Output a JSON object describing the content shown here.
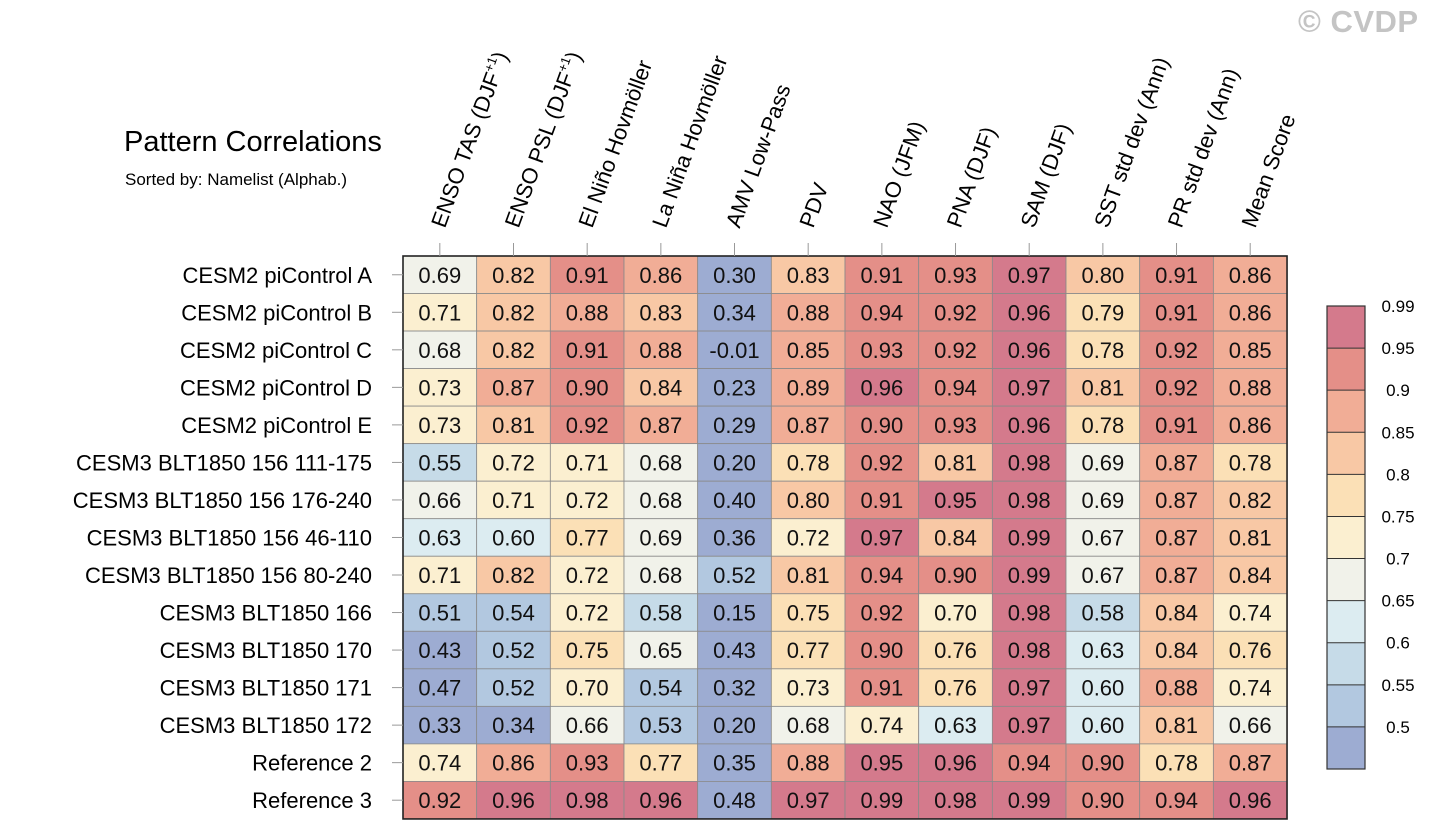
{
  "watermark": "© CVDP",
  "chart_data": {
    "type": "heatmap",
    "title": "Pattern Correlations",
    "subtitle": "Sorted by: Namelist (Alphab.)",
    "columns": [
      "ENSO TAS (DJF+1)",
      "ENSO PSL (DJF+1)",
      "El Niño Hovmöller",
      "La Niña Hovmöller",
      "AMV Low-Pass",
      "PDV",
      "NAO (JFM)",
      "PNA (DJF)",
      "SAM (DJF)",
      "SST std dev (Ann)",
      "PR std dev (Ann)",
      "Mean Score"
    ],
    "rows": [
      "CESM2 piControl A",
      "CESM2 piControl B",
      "CESM2 piControl C",
      "CESM2 piControl D",
      "CESM2 piControl E",
      "CESM3 BLT1850 156 111-175",
      "CESM3 BLT1850 156 176-240",
      "CESM3 BLT1850 156 46-110",
      "CESM3 BLT1850 156 80-240",
      "CESM3 BLT1850 166",
      "CESM3 BLT1850 170",
      "CESM3 BLT1850 171",
      "CESM3 BLT1850 172",
      "Reference 2",
      "Reference 3"
    ],
    "values": [
      [
        "0.69",
        "0.82",
        "0.91",
        "0.86",
        "0.30",
        "0.83",
        "0.91",
        "0.93",
        "0.97",
        "0.80",
        "0.91",
        "0.86"
      ],
      [
        "0.71",
        "0.82",
        "0.88",
        "0.83",
        "0.34",
        "0.88",
        "0.94",
        "0.92",
        "0.96",
        "0.79",
        "0.91",
        "0.86"
      ],
      [
        "0.68",
        "0.82",
        "0.91",
        "0.88",
        "-0.01",
        "0.85",
        "0.93",
        "0.92",
        "0.96",
        "0.78",
        "0.92",
        "0.85"
      ],
      [
        "0.73",
        "0.87",
        "0.90",
        "0.84",
        "0.23",
        "0.89",
        "0.96",
        "0.94",
        "0.97",
        "0.81",
        "0.92",
        "0.88"
      ],
      [
        "0.73",
        "0.81",
        "0.92",
        "0.87",
        "0.29",
        "0.87",
        "0.90",
        "0.93",
        "0.96",
        "0.78",
        "0.91",
        "0.86"
      ],
      [
        "0.55",
        "0.72",
        "0.71",
        "0.68",
        "0.20",
        "0.78",
        "0.92",
        "0.81",
        "0.98",
        "0.69",
        "0.87",
        "0.78"
      ],
      [
        "0.66",
        "0.71",
        "0.72",
        "0.68",
        "0.40",
        "0.80",
        "0.91",
        "0.95",
        "0.98",
        "0.69",
        "0.87",
        "0.82"
      ],
      [
        "0.63",
        "0.60",
        "0.77",
        "0.69",
        "0.36",
        "0.72",
        "0.97",
        "0.84",
        "0.99",
        "0.67",
        "0.87",
        "0.81"
      ],
      [
        "0.71",
        "0.82",
        "0.72",
        "0.68",
        "0.52",
        "0.81",
        "0.94",
        "0.90",
        "0.99",
        "0.67",
        "0.87",
        "0.84"
      ],
      [
        "0.51",
        "0.54",
        "0.72",
        "0.58",
        "0.15",
        "0.75",
        "0.92",
        "0.70",
        "0.98",
        "0.58",
        "0.84",
        "0.74"
      ],
      [
        "0.43",
        "0.52",
        "0.75",
        "0.65",
        "0.43",
        "0.77",
        "0.90",
        "0.76",
        "0.98",
        "0.63",
        "0.84",
        "0.76"
      ],
      [
        "0.47",
        "0.52",
        "0.70",
        "0.54",
        "0.32",
        "0.73",
        "0.91",
        "0.76",
        "0.97",
        "0.60",
        "0.88",
        "0.74"
      ],
      [
        "0.33",
        "0.34",
        "0.66",
        "0.53",
        "0.20",
        "0.68",
        "0.74",
        "0.63",
        "0.97",
        "0.60",
        "0.81",
        "0.66"
      ],
      [
        "0.74",
        "0.86",
        "0.93",
        "0.77",
        "0.35",
        "0.88",
        "0.95",
        "0.96",
        "0.94",
        "0.90",
        "0.78",
        "0.87"
      ],
      [
        "0.92",
        "0.96",
        "0.98",
        "0.96",
        "0.48",
        "0.97",
        "0.99",
        "0.98",
        "0.99",
        "0.90",
        "0.94",
        "0.96"
      ]
    ],
    "colorbar": {
      "levels": [
        "0.5",
        "0.55",
        "0.6",
        "0.65",
        "0.7",
        "0.75",
        "0.8",
        "0.85",
        "0.9",
        "0.95",
        "0.99"
      ],
      "colors": [
        "#9dacd2",
        "#b2c8e0",
        "#c6dbe8",
        "#dcecf1",
        "#f1f2ea",
        "#fbefd0",
        "#fbe0b6",
        "#f8c8a5",
        "#f1ad96",
        "#e48f88",
        "#d47a8c"
      ]
    }
  }
}
